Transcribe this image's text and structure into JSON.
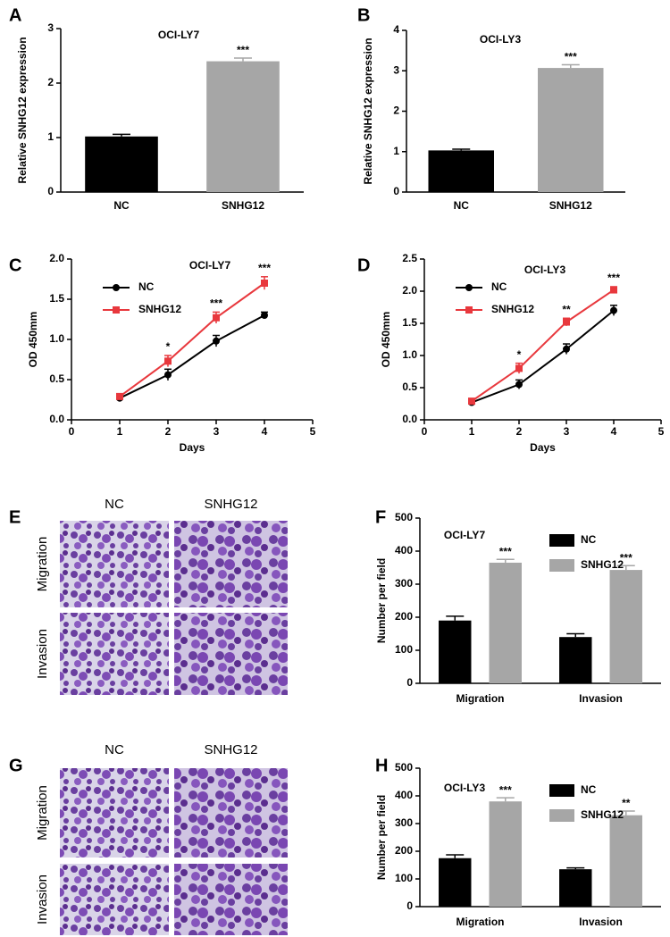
{
  "chart_data": [
    {
      "panel": "A",
      "type": "bar",
      "title": "OCI-LY7",
      "y_label": "Relative SNHG12 expression",
      "categories": [
        "NC",
        "SNHG12"
      ],
      "values": [
        1.02,
        2.4
      ],
      "errors": [
        0.04,
        0.06
      ],
      "colors": [
        "#000000",
        "#a6a6a6"
      ],
      "significance": [
        null,
        "***"
      ],
      "ylim": [
        0,
        3
      ],
      "yticks": [
        0,
        1,
        2,
        3
      ]
    },
    {
      "panel": "B",
      "type": "bar",
      "title": "OCI-LY3",
      "y_label": "Relative SNHG12 expression",
      "categories": [
        "NC",
        "SNHG12"
      ],
      "values": [
        1.03,
        3.07
      ],
      "errors": [
        0.03,
        0.08
      ],
      "colors": [
        "#000000",
        "#a6a6a6"
      ],
      "significance": [
        null,
        "***"
      ],
      "ylim": [
        0,
        4
      ],
      "yticks": [
        0,
        1,
        2,
        3,
        4
      ]
    },
    {
      "panel": "C",
      "type": "line",
      "title": "OCI-LY7",
      "y_label": "OD 450mm",
      "x_label": "Days",
      "x": [
        1,
        2,
        3,
        4
      ],
      "series": [
        {
          "name": "NC",
          "color": "#000000",
          "marker": "circle",
          "values": [
            0.27,
            0.56,
            0.98,
            1.3
          ],
          "errors": [
            0.02,
            0.07,
            0.07,
            0.04
          ]
        },
        {
          "name": "SNHG12",
          "color": "#e8383d",
          "marker": "square",
          "values": [
            0.29,
            0.73,
            1.27,
            1.7
          ],
          "errors": [
            0.02,
            0.07,
            0.07,
            0.08
          ]
        }
      ],
      "significance": [
        null,
        "*",
        "***",
        "***"
      ],
      "xlim": [
        0,
        5
      ],
      "xticks": [
        0,
        1,
        2,
        3,
        4,
        5
      ],
      "ylim": [
        0,
        2
      ],
      "yticks": [
        {
          "value": 0,
          "label": "0.0"
        },
        0.5,
        {
          "value": 1,
          "label": "1.0"
        },
        1.5,
        {
          "value": 2,
          "label": "2.0"
        }
      ]
    },
    {
      "panel": "D",
      "type": "line",
      "title": "OCI-LY3",
      "y_label": "OD 450mm",
      "x_label": "Days",
      "x": [
        1,
        2,
        3,
        4
      ],
      "series": [
        {
          "name": "NC",
          "color": "#000000",
          "marker": "circle",
          "values": [
            0.27,
            0.55,
            1.1,
            1.7
          ],
          "errors": [
            0.02,
            0.07,
            0.08,
            0.08
          ]
        },
        {
          "name": "SNHG12",
          "color": "#e8383d",
          "marker": "square",
          "values": [
            0.29,
            0.8,
            1.52,
            2.02
          ],
          "errors": [
            0.02,
            0.08,
            0.06,
            0.05
          ]
        }
      ],
      "significance": [
        null,
        "*",
        "**",
        "***"
      ],
      "xlim": [
        0,
        5
      ],
      "xticks": [
        0,
        1,
        2,
        3,
        4,
        5
      ],
      "ylim": [
        0,
        2.5
      ],
      "yticks": [
        {
          "value": 0,
          "label": "0.0"
        },
        0.5,
        {
          "value": 1,
          "label": "1.0"
        },
        1.5,
        {
          "value": 2,
          "label": "2.0"
        },
        2.5
      ]
    },
    {
      "panel": "F",
      "type": "grouped_bar",
      "title": "OCI-LY7",
      "y_label": "Number per field",
      "categories": [
        "Migration",
        "Invasion"
      ],
      "series": [
        {
          "name": "NC",
          "color": "#000000",
          "values": [
            190,
            140
          ],
          "errors": [
            13,
            10
          ],
          "significance": [
            null,
            null
          ]
        },
        {
          "name": "SNHG12",
          "color": "#a6a6a6",
          "values": [
            365,
            343
          ],
          "errors": [
            10,
            13
          ],
          "significance": [
            "***",
            "***"
          ]
        }
      ],
      "ylim": [
        0,
        500
      ],
      "yticks": [
        0,
        100,
        200,
        300,
        400,
        500
      ]
    },
    {
      "panel": "H",
      "type": "grouped_bar",
      "title": "OCI-LY3",
      "y_label": "Number per field",
      "categories": [
        "Migration",
        "Invasion"
      ],
      "series": [
        {
          "name": "NC",
          "color": "#000000",
          "values": [
            175,
            135
          ],
          "errors": [
            12,
            5
          ],
          "significance": [
            null,
            null
          ]
        },
        {
          "name": "SNHG12",
          "color": "#a6a6a6",
          "values": [
            380,
            330
          ],
          "errors": [
            13,
            15
          ],
          "significance": [
            "***",
            "**"
          ]
        }
      ],
      "ylim": [
        0,
        500
      ],
      "yticks": [
        0,
        100,
        200,
        300,
        400,
        500
      ]
    }
  ],
  "image_panels": [
    {
      "panel": "E",
      "columns": [
        "NC",
        "SNHG12"
      ],
      "rows": [
        "Migration",
        "Invasion"
      ]
    },
    {
      "panel": "G",
      "columns": [
        "NC",
        "SNHG12"
      ],
      "rows": [
        "Migration",
        "Invasion"
      ]
    }
  ]
}
